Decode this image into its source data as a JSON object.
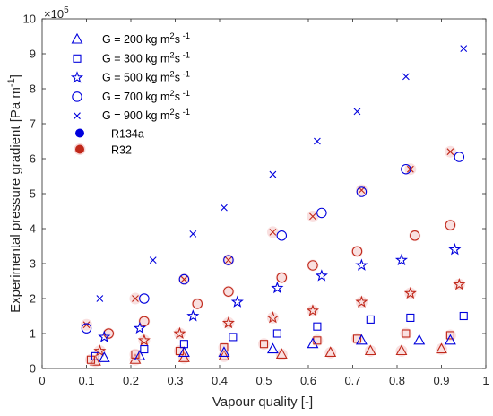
{
  "chart_data": {
    "type": "scatter",
    "xlabel": "Vapour quality [-]",
    "ylabel": "Experimental pressure gradient [Pa m",
    "ylabel_sup": "-1",
    "ylabel_close": "]",
    "exponent": "×10",
    "exponent_power": "5",
    "xlim": [
      0,
      1
    ],
    "ylim": [
      0,
      10
    ],
    "x_ticks": [
      "0",
      "0.1",
      "0.2",
      "0.3",
      "0.4",
      "0.5",
      "0.6",
      "0.7",
      "0.8",
      "0.9",
      "1"
    ],
    "y_ticks": [
      "0",
      "1",
      "2",
      "3",
      "4",
      "5",
      "6",
      "7",
      "8",
      "9",
      "10"
    ],
    "grid": false,
    "legend_position": "top-left",
    "fluids": [
      {
        "name": "R134a",
        "color": "#0000dd"
      },
      {
        "name": "R32",
        "color": "#c0281a"
      }
    ],
    "legend_mass_flux": [
      {
        "marker": "triangle",
        "text": "G = 200 kg  m",
        "sup1": "2",
        "mid": "s",
        "sup2": "-1"
      },
      {
        "marker": "square",
        "text": "G = 300 kg  m",
        "sup1": "2",
        "mid": "s",
        "sup2": "-1"
      },
      {
        "marker": "star",
        "text": "G = 500 kg  m",
        "sup1": "2",
        "mid": "s",
        "sup2": "-1"
      },
      {
        "marker": "circle",
        "text": "G = 700 kg  m",
        "sup1": "2",
        "mid": "s",
        "sup2": "-1"
      },
      {
        "marker": "x",
        "text": "G = 900 kg  m",
        "sup1": "2",
        "mid": "s",
        "sup2": "-1"
      }
    ],
    "series": [
      {
        "fluid": "R134a",
        "G": 200,
        "marker": "triangle",
        "x": [
          0.14,
          0.22,
          0.32,
          0.41,
          0.52,
          0.61,
          0.72,
          0.85,
          0.92
        ],
        "y": [
          0.3,
          0.35,
          0.45,
          0.45,
          0.55,
          0.7,
          0.8,
          0.8,
          0.8
        ]
      },
      {
        "fluid": "R134a",
        "G": 300,
        "marker": "square",
        "x": [
          0.12,
          0.23,
          0.32,
          0.43,
          0.53,
          0.62,
          0.74,
          0.83,
          0.95
        ],
        "y": [
          0.35,
          0.55,
          0.7,
          0.9,
          1.0,
          1.2,
          1.4,
          1.45,
          1.5
        ]
      },
      {
        "fluid": "R134a",
        "G": 500,
        "marker": "star",
        "x": [
          0.14,
          0.22,
          0.34,
          0.44,
          0.53,
          0.63,
          0.72,
          0.81,
          0.93
        ],
        "y": [
          0.9,
          1.15,
          1.5,
          1.9,
          2.3,
          2.65,
          2.95,
          3.1,
          3.4
        ]
      },
      {
        "fluid": "R134a",
        "G": 700,
        "marker": "circle",
        "x": [
          0.1,
          0.23,
          0.32,
          0.42,
          0.54,
          0.63,
          0.72,
          0.82,
          0.94
        ],
        "y": [
          1.15,
          2.0,
          2.55,
          3.1,
          3.8,
          4.45,
          5.05,
          5.7,
          6.05
        ]
      },
      {
        "fluid": "R134a",
        "G": 900,
        "marker": "x",
        "x": [
          0.13,
          0.25,
          0.34,
          0.41,
          0.52,
          0.62,
          0.71,
          0.82,
          0.95
        ],
        "y": [
          2.0,
          3.1,
          3.85,
          4.6,
          5.55,
          6.5,
          7.35,
          8.35,
          9.15
        ]
      },
      {
        "fluid": "R32",
        "G": 200,
        "marker": "triangle",
        "x": [
          0.12,
          0.21,
          0.32,
          0.41,
          0.54,
          0.65,
          0.74,
          0.81,
          0.9
        ],
        "y": [
          0.2,
          0.25,
          0.3,
          0.35,
          0.4,
          0.45,
          0.5,
          0.5,
          0.55
        ]
      },
      {
        "fluid": "R32",
        "G": 300,
        "marker": "square",
        "x": [
          0.11,
          0.21,
          0.31,
          0.41,
          0.5,
          0.62,
          0.71,
          0.82,
          0.92
        ],
        "y": [
          0.25,
          0.4,
          0.5,
          0.6,
          0.7,
          0.8,
          0.85,
          1.0,
          0.95
        ]
      },
      {
        "fluid": "R32",
        "G": 500,
        "marker": "star",
        "x": [
          0.13,
          0.23,
          0.31,
          0.42,
          0.52,
          0.61,
          0.72,
          0.83,
          0.94
        ],
        "y": [
          0.5,
          0.8,
          1.0,
          1.3,
          1.45,
          1.65,
          1.9,
          2.15,
          2.4
        ]
      },
      {
        "fluid": "R32",
        "G": 700,
        "marker": "circle",
        "x": [
          0.15,
          0.23,
          0.35,
          0.42,
          0.54,
          0.61,
          0.71,
          0.84,
          0.92
        ],
        "y": [
          1.0,
          1.35,
          1.85,
          2.2,
          2.6,
          2.95,
          3.35,
          3.8,
          4.1
        ]
      },
      {
        "fluid": "R32",
        "G": 900,
        "marker": "x",
        "x": [
          0.1,
          0.21,
          0.32,
          0.42,
          0.52,
          0.61,
          0.72,
          0.83,
          0.92
        ],
        "y": [
          1.25,
          2.0,
          2.55,
          3.1,
          3.9,
          4.35,
          5.1,
          5.7,
          6.2
        ]
      }
    ]
  }
}
